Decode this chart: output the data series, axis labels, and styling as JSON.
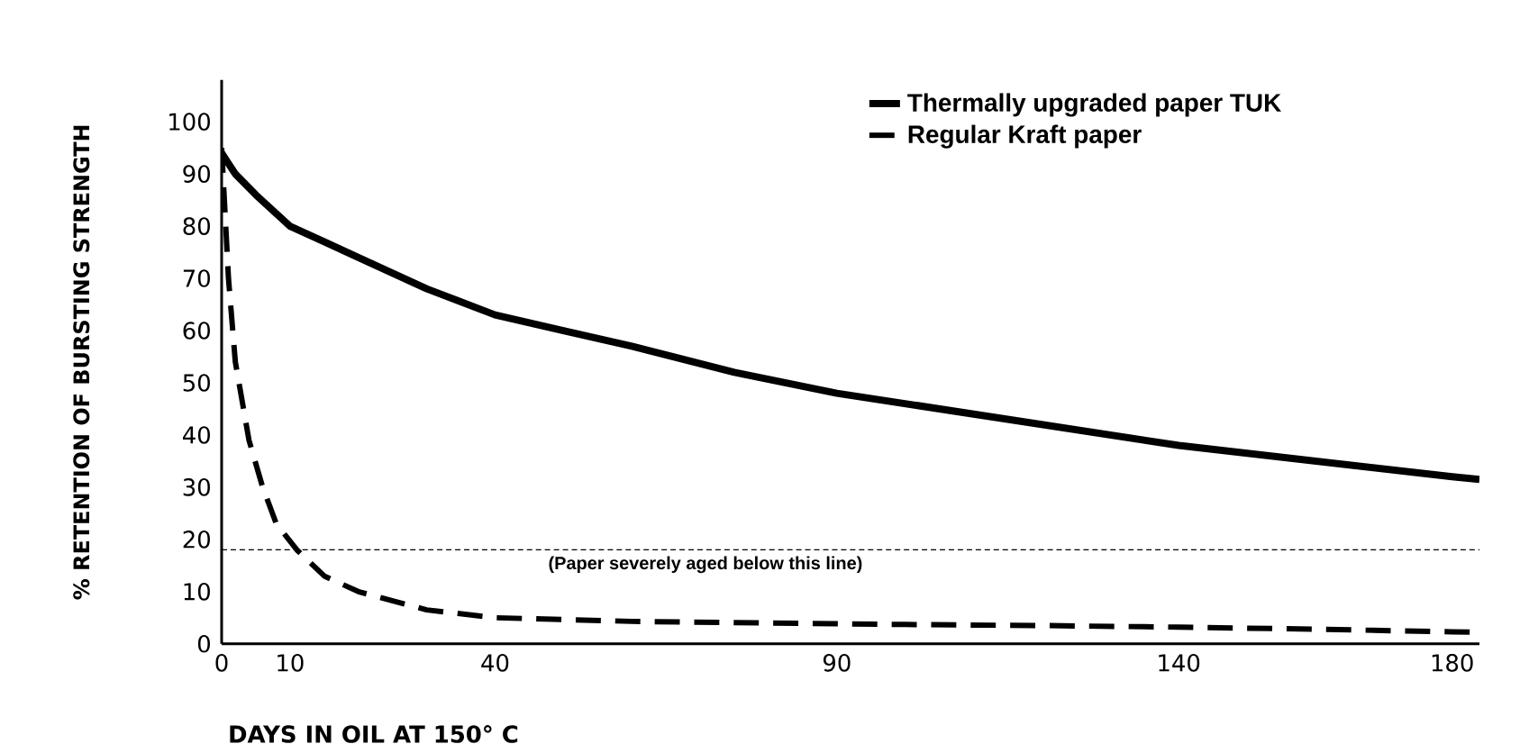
{
  "chart_data": {
    "type": "line",
    "xlabel": "DAYS IN OIL AT 150° C",
    "ylabel": "% RETENTION OF BURSTING STRENGTH",
    "xlim": [
      0,
      184
    ],
    "xticks": [
      0,
      10,
      40,
      90,
      140,
      180
    ],
    "ylim": [
      0,
      108
    ],
    "yticks": [
      0,
      10,
      20,
      30,
      40,
      50,
      60,
      70,
      80,
      90,
      100
    ],
    "series": [
      {
        "name": "Thermally upgraded paper TUK",
        "color": "#000000",
        "line_style": "solid",
        "x": [
          0,
          2,
          5,
          10,
          15,
          20,
          30,
          40,
          50,
          60,
          75,
          90,
          110,
          125,
          140,
          160,
          180,
          184
        ],
        "values": [
          94,
          90,
          86,
          80,
          77,
          74,
          68,
          63,
          60,
          57,
          52,
          48,
          44,
          41,
          38,
          35,
          32,
          31.5
        ]
      },
      {
        "name": "Regular Kraft paper",
        "color": "#000000",
        "line_style": "dashed",
        "x": [
          0,
          1,
          2,
          4,
          6,
          8,
          11,
          15,
          20,
          30,
          40,
          60,
          80,
          100,
          120,
          140,
          160,
          180,
          184
        ],
        "values": [
          95,
          70,
          54,
          39,
          30,
          23,
          18,
          13,
          10,
          6.5,
          5,
          4.3,
          4,
          3.7,
          3.5,
          3.2,
          2.8,
          2.3,
          2.2
        ]
      }
    ],
    "ref_lines": [
      {
        "axis": "y",
        "value": 18,
        "label": "(Paper severely aged below this line)",
        "line_style": "dashed",
        "color": "#000000"
      }
    ],
    "legend": "top right",
    "grid": false,
    "marker": "none"
  }
}
